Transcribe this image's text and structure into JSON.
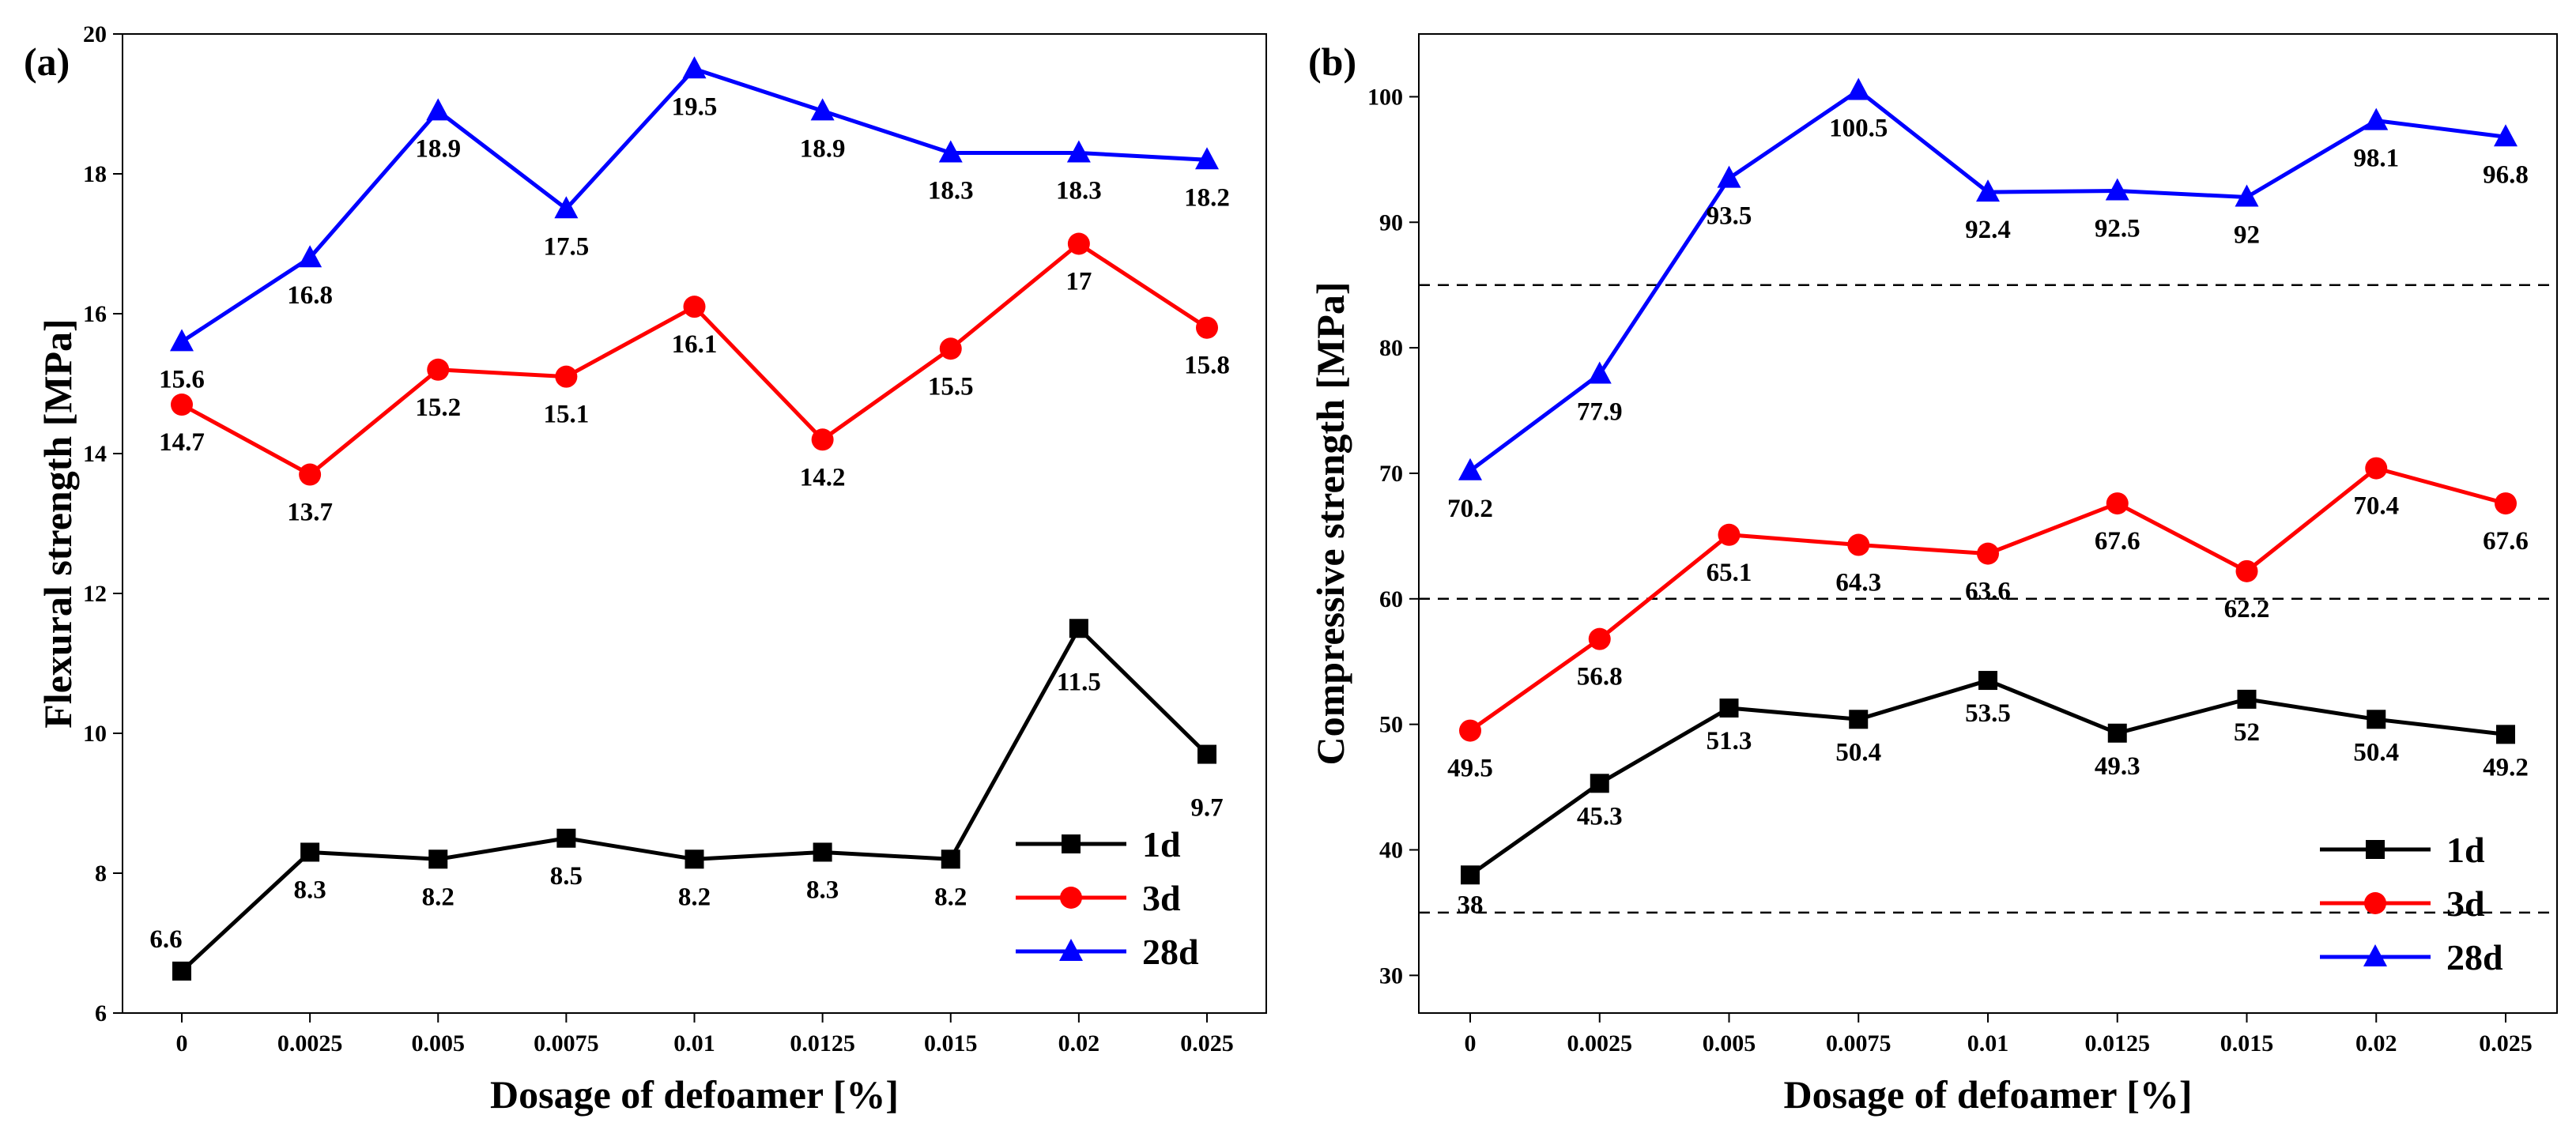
{
  "colors": {
    "1d": "#000000",
    "3d": "#ff0000",
    "28d": "#0000ff",
    "reference_line": "#000000"
  },
  "chart_data": [
    {
      "panel_label": "(a)",
      "type": "line",
      "xlabel": "Dosage of defoamer [%]",
      "ylabel": "Flexural strength [MPa]",
      "categories": [
        "0",
        "0.0025",
        "0.005",
        "0.0075",
        "0.01",
        "0.0125",
        "0.015",
        "0.02",
        "0.025"
      ],
      "ylim": [
        6,
        20
      ],
      "yticks": [
        6,
        8,
        10,
        12,
        14,
        16,
        18,
        20
      ],
      "grid": false,
      "legend_position": "bottom-right",
      "series": [
        {
          "key": "1d",
          "name": "1d",
          "marker": "square",
          "color": "#000000",
          "values": [
            6.6,
            8.3,
            8.2,
            8.5,
            8.2,
            8.3,
            8.2,
            11.5,
            9.7
          ],
          "labels": [
            "6.6",
            "8.3",
            "8.2",
            "8.5",
            "8.2",
            "8.3",
            "8.2",
            "11.5",
            "9.7"
          ]
        },
        {
          "key": "3d",
          "name": "3d",
          "marker": "circle",
          "color": "#ff0000",
          "values": [
            14.7,
            13.7,
            15.2,
            15.1,
            16.1,
            14.2,
            15.5,
            17,
            15.8
          ],
          "labels": [
            "14.7",
            "13.7",
            "15.2",
            "15.1",
            "16.1",
            "14.2",
            "15.5",
            "17",
            "15.8"
          ]
        },
        {
          "key": "28d",
          "name": "28d",
          "marker": "triangle",
          "color": "#0000ff",
          "values": [
            15.6,
            16.8,
            18.9,
            17.5,
            19.5,
            18.9,
            18.3,
            18.3,
            18.2
          ],
          "labels": [
            "15.6",
            "16.8",
            "18.9",
            "17.5",
            "19.5",
            "18.9",
            "18.3",
            "18.3",
            "18.2"
          ]
        }
      ],
      "reference_lines": []
    },
    {
      "panel_label": "(b)",
      "type": "line",
      "xlabel": "Dosage of defoamer [%]",
      "ylabel": "Compressive strength [MPa]",
      "categories": [
        "0",
        "0.0025",
        "0.005",
        "0.0075",
        "0.01",
        "0.0125",
        "0.015",
        "0.02",
        "0.025"
      ],
      "ylim": [
        27,
        105
      ],
      "yticks": [
        30,
        40,
        50,
        60,
        70,
        80,
        90,
        100
      ],
      "grid": false,
      "legend_position": "bottom-right",
      "series": [
        {
          "key": "1d",
          "name": "1d",
          "marker": "square",
          "color": "#000000",
          "values": [
            38,
            45.3,
            51.3,
            50.4,
            53.5,
            49.3,
            52,
            50.4,
            49.2
          ],
          "labels": [
            "38",
            "45.3",
            "51.3",
            "50.4",
            "53.5",
            "49.3",
            "52",
            "50.4",
            "49.2"
          ]
        },
        {
          "key": "3d",
          "name": "3d",
          "marker": "circle",
          "color": "#ff0000",
          "values": [
            49.5,
            56.8,
            65.1,
            64.3,
            63.6,
            67.6,
            62.2,
            70.4,
            67.6
          ],
          "labels": [
            "49.5",
            "56.8",
            "65.1",
            "64.3",
            "63.6",
            "67.6",
            "62.2",
            "70.4",
            "67.6"
          ]
        },
        {
          "key": "28d",
          "name": "28d",
          "marker": "triangle",
          "color": "#0000ff",
          "values": [
            70.2,
            77.9,
            93.5,
            100.5,
            92.4,
            92.5,
            92,
            98.1,
            96.8
          ],
          "labels": [
            "70.2",
            "77.9",
            "93.5",
            "100.5",
            "92.4",
            "92.5",
            "92",
            "98.1",
            "96.8"
          ]
        }
      ],
      "reference_lines": [
        85,
        60,
        35
      ]
    }
  ]
}
